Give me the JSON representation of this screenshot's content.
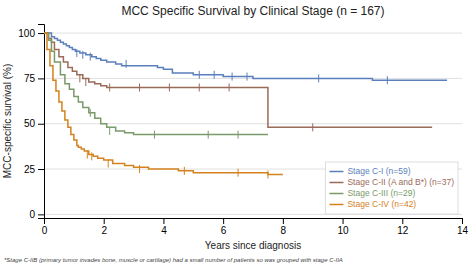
{
  "chart_data": {
    "type": "step",
    "title": "MCC Specific Survival by Clinical Stage (n = 167)",
    "xlabel": "Years since diagnosis",
    "ylabel": "MCC-specific survival (%)",
    "annotations": [
      "*Stage C-IIB (primary tumor invades bone, muscle or cartilage) had a small number of patients so was grouped with stage C-IIA"
    ],
    "xlim": [
      0,
      14
    ],
    "ylim": [
      -2,
      105
    ],
    "xticks": [
      0,
      2,
      4,
      6,
      8,
      10,
      12,
      14
    ],
    "yticks": [
      0,
      25,
      50,
      75,
      100
    ],
    "grid": true,
    "legend": "lower right",
    "series": [
      {
        "name": "Stage C-I (n=59)",
        "color": "#5b7fbc",
        "x": [
          0,
          0.15,
          0.25,
          0.35,
          0.45,
          0.55,
          0.65,
          0.75,
          0.85,
          0.95,
          1.05,
          1.2,
          1.4,
          1.6,
          1.75,
          1.9,
          2.1,
          2.4,
          2.6,
          2.9,
          3.2,
          3.5,
          3.8,
          4.0,
          4.3,
          5.0,
          5.5,
          6.0,
          6.5,
          7.0,
          7.5,
          8.0,
          9.0,
          10.0,
          11.0,
          12.0,
          12.5,
          13.5
        ],
        "values": [
          100,
          100,
          98,
          97,
          96,
          95,
          94,
          93,
          92,
          91,
          90,
          89,
          88,
          87,
          86,
          85,
          84,
          83,
          82,
          82,
          82,
          82,
          81,
          80,
          78,
          77,
          77,
          76,
          76,
          75,
          75,
          75,
          75,
          75,
          74,
          74,
          74,
          74
        ],
        "censor_x": [
          1.1,
          1.3,
          1.55,
          2.75,
          5.2,
          5.7,
          6.3,
          6.8,
          9.2,
          11.5
        ],
        "censor_values": [
          89,
          88,
          87,
          83,
          77,
          77,
          76,
          76,
          75,
          74
        ]
      },
      {
        "name": "Stage C-II (A and B*) (n=37)",
        "color": "#9b6b5a",
        "x": [
          0,
          0.15,
          0.25,
          0.35,
          0.5,
          0.65,
          0.8,
          0.95,
          1.1,
          1.3,
          1.5,
          1.7,
          1.9,
          2.1,
          2.4,
          2.7,
          3.0,
          3.3,
          3.6,
          4.0,
          4.5,
          5.0,
          5.5,
          6.0,
          6.5,
          7.0,
          7.5,
          8.0,
          9.0,
          10.0,
          11.0,
          12.0,
          13.0
        ],
        "values": [
          100,
          97,
          95,
          91,
          87,
          84,
          81,
          79,
          77,
          75,
          73,
          72,
          71,
          70,
          70,
          70,
          70,
          70,
          70,
          70,
          70,
          70,
          70,
          70,
          70,
          70,
          48,
          48,
          48,
          48,
          48,
          48,
          48
        ],
        "censor_x": [
          1.2,
          1.4,
          2.2,
          3.2,
          4.2,
          5.2,
          6.2,
          9.0
        ],
        "censor_values": [
          75,
          73,
          70,
          70,
          70,
          70,
          70,
          48
        ]
      },
      {
        "name": "Stage C-III (n=29)",
        "color": "#7a9a6a",
        "x": [
          0,
          0.15,
          0.25,
          0.35,
          0.55,
          0.7,
          0.85,
          1.0,
          1.15,
          1.3,
          1.5,
          1.7,
          1.9,
          2.1,
          2.4,
          2.7,
          3.0,
          3.5,
          4.0,
          5.0,
          6.0,
          7.0,
          7.5
        ],
        "values": [
          100,
          96,
          90,
          84,
          77,
          72,
          69,
          65,
          62,
          59,
          56,
          53,
          50,
          48,
          46,
          45,
          44,
          44,
          44,
          44,
          44,
          44,
          44
        ],
        "censor_x": [
          1.55,
          2.2,
          3.7,
          5.5,
          6.5
        ],
        "censor_values": [
          56,
          46,
          44,
          44,
          44
        ]
      },
      {
        "name": "Stage C-IV (n=42)",
        "color": "#d4821e",
        "x": [
          0,
          0.1,
          0.2,
          0.3,
          0.4,
          0.5,
          0.6,
          0.7,
          0.8,
          0.9,
          1.0,
          1.1,
          1.15,
          1.25,
          1.35,
          1.5,
          1.65,
          1.8,
          2.0,
          2.3,
          2.7,
          3.0,
          3.5,
          4.0,
          4.5,
          5.0,
          5.5,
          6.0,
          7.0,
          7.5,
          8.0
        ],
        "values": [
          100,
          91,
          82,
          74,
          68,
          62,
          57,
          52,
          48,
          44,
          41,
          38,
          37,
          36,
          35,
          33,
          32,
          31,
          30,
          28,
          27,
          26,
          25,
          25,
          24,
          23,
          23,
          23,
          23,
          22,
          22
        ],
        "censor_x": [
          1.45,
          1.6,
          2.15,
          3.2,
          4.7,
          6.5,
          7.5
        ],
        "censor_values": [
          33,
          32,
          28,
          25,
          24,
          23,
          22
        ]
      }
    ]
  }
}
